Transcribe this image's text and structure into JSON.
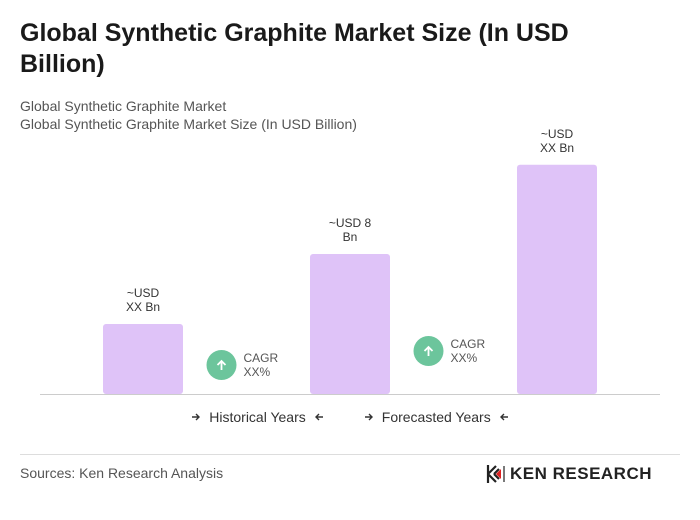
{
  "chart_data": {
    "type": "bar",
    "title": "Global Synthetic Graphite Market Size (In USD Billion)",
    "subtitle": [
      "Global Synthetic Graphite Market",
      "Global Synthetic Graphite Market Size (In USD Billion)"
    ],
    "values": [
      4,
      8,
      13.1
    ],
    "value_labels": [
      "~USD XX Bn",
      "~USD 8 Bn",
      "~USD XX Bn"
    ],
    "color": "#dfc3f8",
    "ylim": [
      0,
      16
    ],
    "annotations": [
      "CAGR XX%",
      "CAGR XX%"
    ],
    "annotation_color": "#6cc59c",
    "legend": [
      "Historical Years",
      "Forecasted Years"
    ]
  },
  "footer": {
    "source": "Sources: Ken Research Analysis",
    "logo": "KEN RESEARCH"
  }
}
